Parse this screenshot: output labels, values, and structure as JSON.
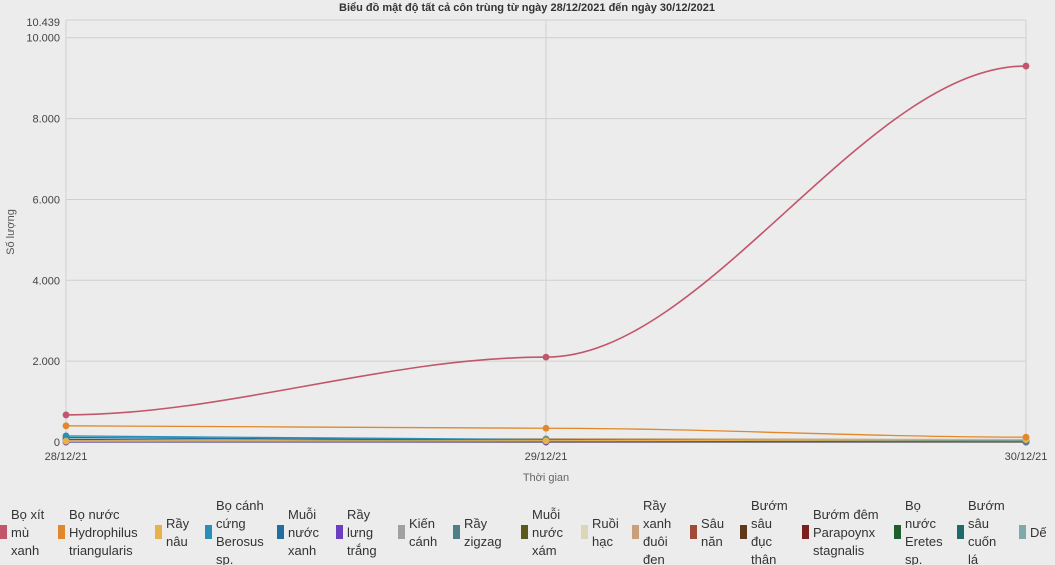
{
  "chart_data": {
    "type": "line",
    "title": "Biểu đồ mật độ tất cả côn trùng từ ngày 28/12/2021 đến ngày 30/12/2021",
    "xlabel": "Thời gian",
    "ylabel": "Số lượng",
    "categories": [
      "28/12/21",
      "29/12/21",
      "30/12/21"
    ],
    "y_max_label": "10.439",
    "yticks": [
      0,
      2000,
      4000,
      6000,
      8000,
      10000
    ],
    "ytick_labels": [
      "0",
      "2.000",
      "4.000",
      "6.000",
      "8.000",
      "10.000"
    ],
    "ylim": [
      0,
      10439
    ],
    "grid": true,
    "legend_position": "bottom",
    "series": [
      {
        "name": "Bọ xít mù xanh",
        "color": "#c2566a",
        "values": [
          670,
          2100,
          9300
        ]
      },
      {
        "name": "Bọ nước Hydrophilus triangularis",
        "color": "#e0882a",
        "values": [
          400,
          340,
          120
        ]
      },
      {
        "name": "Rầy nâu",
        "color": "#e8b24a",
        "values": [
          20,
          30,
          60
        ]
      },
      {
        "name": "Bọ cánh cứng Berosus sp.",
        "color": "#2a8fb8",
        "values": [
          150,
          60,
          25
        ]
      },
      {
        "name": "Muỗi nước xanh",
        "color": "#1f6fa0",
        "values": [
          110,
          40,
          20
        ]
      },
      {
        "name": "Rầy lưng trắng",
        "color": "#6a3fc1",
        "values": [
          5,
          10,
          15
        ]
      },
      {
        "name": "Kiến cánh",
        "color": "#a0a0a0",
        "values": [
          10,
          12,
          8
        ]
      },
      {
        "name": "Rầy zigzag",
        "color": "#4f7f86",
        "values": [
          8,
          10,
          12
        ]
      },
      {
        "name": "Muỗi nước xám",
        "color": "#5a5a1e",
        "values": [
          5,
          6,
          4
        ]
      },
      {
        "name": "Ruồi hạc",
        "color": "#dad6b6",
        "values": [
          5,
          5,
          5
        ]
      },
      {
        "name": "Rầy xanh đuôi đen",
        "color": "#c9a07a",
        "values": [
          30,
          80,
          60
        ]
      },
      {
        "name": "Sâu năn",
        "color": "#a04a3a",
        "values": [
          3,
          4,
          3
        ]
      },
      {
        "name": "Bướm sâu đục thân",
        "color": "#5e3a1a",
        "values": [
          4,
          3,
          2
        ]
      },
      {
        "name": "Bướm đêm Parapoynx stagnalis",
        "color": "#7a1e1e",
        "values": [
          3,
          2,
          2
        ]
      },
      {
        "name": "Bọ nước Eretes sp.",
        "color": "#1e5e2e",
        "values": [
          2,
          2,
          1
        ]
      },
      {
        "name": "Bướm sâu cuốn lá",
        "color": "#1e6a6a",
        "values": [
          60,
          30,
          15
        ]
      },
      {
        "name": "Dế",
        "color": "#7fa9ac",
        "values": [
          2,
          2,
          2
        ]
      }
    ]
  }
}
